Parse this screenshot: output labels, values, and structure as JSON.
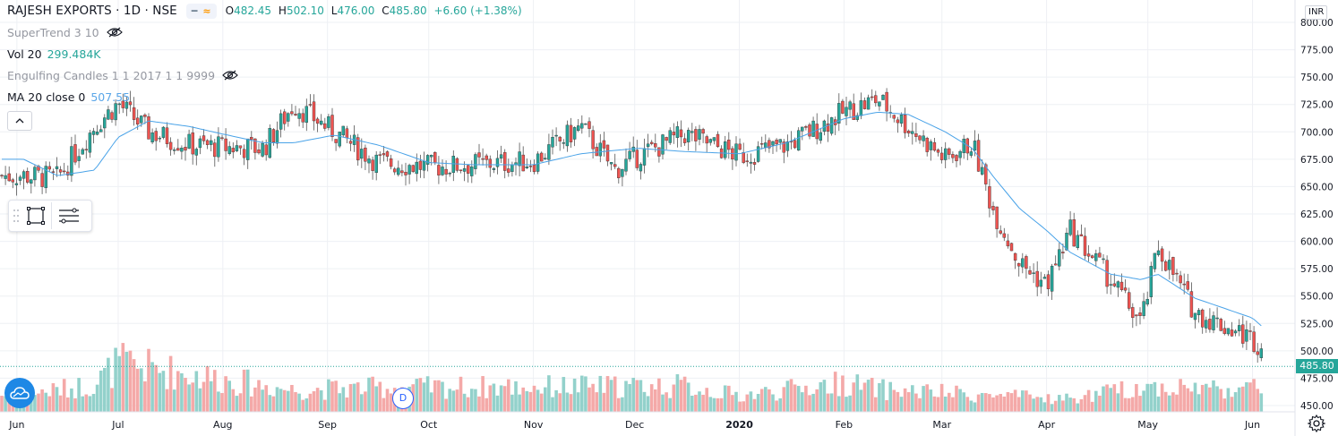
{
  "header": {
    "symbol_title": "RAJESH EXPORTS · 1D · NSE",
    "ohlc": {
      "o_label": "O",
      "o": "482.45",
      "h_label": "H",
      "h": "502.10",
      "l_label": "L",
      "l": "476.00",
      "c_label": "C",
      "c": "485.80",
      "change": "+6.60 (+1.38%)"
    }
  },
  "indicators": [
    {
      "name": "SuperTrend 3 10",
      "value": ""
    },
    {
      "name": "Vol 20",
      "value": "299.484K"
    },
    {
      "name": "Engulfing Candles 1 1 2017 1 1 9999",
      "value": ""
    },
    {
      "name": "MA 20 close 0",
      "value": "507.55"
    }
  ],
  "currency": "INR",
  "last_price_tag": "485.80",
  "interval_badge": "D",
  "colors": {
    "up": "#26a69a",
    "down": "#ef5350",
    "up_volume": "#93d1cb",
    "down_volume": "#f4a9a8",
    "ma": "#4aa3e8",
    "grid": "#eef0f4"
  },
  "icons": [
    "eye-off-icon",
    "chevron-up-icon",
    "rectangle-tool-icon",
    "lines-tool-icon",
    "grip-icon",
    "cloud-logo-icon",
    "gear-icon"
  ],
  "chart_data": {
    "type": "candlestick",
    "price_axis": {
      "ylim": [
        450,
        800
      ],
      "ticks": [
        450,
        475,
        500,
        525,
        550,
        575,
        600,
        625,
        650,
        675,
        700,
        725,
        750,
        775,
        800
      ],
      "tick_labels": [
        "450.00",
        "475.00",
        "500.00",
        "525.00",
        "550.00",
        "575.00",
        "600.00",
        "625.00",
        "650.00",
        "675.00",
        "700.00",
        "725.00",
        "750.00",
        "775.00",
        "800.00"
      ]
    },
    "time_axis": {
      "tick_labels": [
        "Jun",
        "Jul",
        "Aug",
        "Sep",
        "Oct",
        "Nov",
        "Dec",
        "2020",
        "Feb",
        "Mar",
        "Apr",
        "May",
        "Jun"
      ]
    },
    "series": [
      {
        "name": "Close",
        "x": [
          "2019-06-03",
          "2019-06-13",
          "2019-06-24",
          "2019-07-01",
          "2019-07-10",
          "2019-07-22",
          "2019-08-01",
          "2019-08-13",
          "2019-08-22",
          "2019-09-03",
          "2019-09-16",
          "2019-10-01",
          "2019-10-14",
          "2019-11-01",
          "2019-11-15",
          "2019-11-25",
          "2019-12-02",
          "2019-12-16",
          "2020-01-01",
          "2020-01-15",
          "2020-02-01",
          "2020-02-11",
          "2020-02-20",
          "2020-03-02",
          "2020-03-10",
          "2020-03-16",
          "2020-03-24",
          "2020-04-01",
          "2020-04-08",
          "2020-04-20",
          "2020-04-29",
          "2020-05-04",
          "2020-05-15",
          "2020-06-01",
          "2020-06-09"
        ],
        "values": [
          660,
          658,
          705,
          726,
          700,
          688,
          686,
          685,
          725,
          700,
          672,
          668,
          670,
          673,
          705,
          665,
          678,
          698,
          678,
          688,
          718,
          730,
          705,
          675,
          690,
          630,
          580,
          560,
          610,
          565,
          525,
          595,
          535,
          511,
          486
        ]
      },
      {
        "name": "MA 20",
        "x": [
          "2019-06-03",
          "2019-06-13",
          "2019-06-24",
          "2019-07-01",
          "2019-07-10",
          "2019-07-22",
          "2019-08-01",
          "2019-08-13",
          "2019-08-22",
          "2019-09-03",
          "2019-09-16",
          "2019-10-01",
          "2019-10-14",
          "2019-11-01",
          "2019-11-15",
          "2019-11-25",
          "2019-12-02",
          "2019-12-16",
          "2020-01-01",
          "2020-01-15",
          "2020-02-01",
          "2020-02-11",
          "2020-02-20",
          "2020-03-02",
          "2020-03-10",
          "2020-03-16",
          "2020-03-24",
          "2020-04-01",
          "2020-04-08",
          "2020-04-20",
          "2020-04-29",
          "2020-05-04",
          "2020-05-15",
          "2020-06-01",
          "2020-06-09"
        ],
        "values": [
          675,
          660,
          665,
          695,
          710,
          705,
          698,
          690,
          690,
          697,
          688,
          672,
          670,
          670,
          680,
          683,
          685,
          682,
          680,
          690,
          712,
          718,
          716,
          700,
          685,
          660,
          630,
          610,
          590,
          570,
          565,
          570,
          548,
          530,
          508
        ]
      },
      {
        "name": "Vol 20",
        "x": [
          "2019-06-03",
          "2019-06-24",
          "2019-07-01",
          "2019-08-22",
          "2019-09-16",
          "2019-11-01",
          "2019-12-16",
          "2020-01-01",
          "2020-02-01",
          "2020-02-11",
          "2020-03-16",
          "2020-04-08",
          "2020-04-29",
          "2020-06-01",
          "2020-06-09"
        ],
        "values": [
          210,
          340,
          600,
          270,
          300,
          310,
          320,
          200,
          360,
          280,
          200,
          160,
          310,
          290,
          299.484
        ]
      }
    ],
    "grid": true,
    "legend": "top-left"
  }
}
